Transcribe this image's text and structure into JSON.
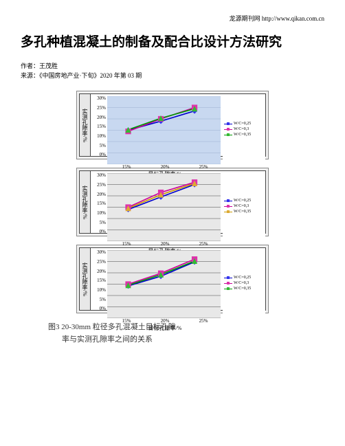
{
  "header_link": "龙源期刊网 http://www.qikan.com.cn",
  "title": "多孔种植混凝土的制备及配合比设计方法研究",
  "author": "作者：王茂胜",
  "source": "来源：《中国房地产业·下旬》2020 年第 03 期",
  "y_label": "实测孔隙率/%",
  "x_label": "目标孔隙率/%",
  "caption_line1": "图3  20-30mm 粒径多孔混凝土目标孔隙",
  "caption_line2": "率与实测孔隙率之间的关系",
  "charts": [
    {
      "y_ticks": [
        "30%",
        "25%",
        "20%",
        "15%",
        "10%",
        "5%",
        "0%"
      ],
      "x_ticks": [
        "15%",
        "20%",
        "25%"
      ],
      "plot_bg": "#c8d8f0",
      "grid_color": "#9bb0d0",
      "series": [
        {
          "label": "W/C=0,25",
          "color": "#0000cc",
          "marker_fill": "#3333ee",
          "marker": "diamond",
          "points": [
            [
              15,
              15
            ],
            [
              47,
              19
            ],
            [
              80,
              23.5
            ]
          ]
        },
        {
          "label": "W/C=0,3",
          "color": "#cc0099",
          "marker_fill": "#dd33aa",
          "marker": "square",
          "points": [
            [
              15,
              14.5
            ],
            [
              47,
              20
            ],
            [
              80,
              25
            ]
          ]
        },
        {
          "label": "W/C=0,35",
          "color": "#009900",
          "marker_fill": "#33bb33",
          "marker": "triangle",
          "points": [
            [
              15,
              15.2
            ],
            [
              47,
              20.3
            ],
            [
              80,
              24.5
            ]
          ]
        }
      ],
      "ylim": [
        0,
        30
      ]
    },
    {
      "y_ticks": [
        "30%",
        "25%",
        "20%",
        "15%",
        "10%",
        "5%",
        "0%"
      ],
      "x_ticks": [
        "15%",
        "20%",
        "25%"
      ],
      "plot_bg": "#e8e8e8",
      "grid_color": "#444444",
      "series": [
        {
          "label": "W/C=0,25",
          "color": "#0000cc",
          "marker_fill": "#3333ee",
          "marker": "diamond",
          "points": [
            [
              15,
              14
            ],
            [
              47,
              19.5
            ],
            [
              80,
              25
            ]
          ]
        },
        {
          "label": "W/C=0,3",
          "color": "#cc0099",
          "marker_fill": "#dd33aa",
          "marker": "square",
          "points": [
            [
              15,
              15
            ],
            [
              47,
              21.5
            ],
            [
              80,
              26
            ]
          ]
        },
        {
          "label": "W/C=0,35",
          "color": "#cc9900",
          "marker_fill": "#ddaa33",
          "marker": "triangle",
          "points": [
            [
              15,
              14.5
            ],
            [
              47,
              20.5
            ],
            [
              80,
              25.5
            ]
          ]
        }
      ],
      "ylim": [
        0,
        30
      ]
    },
    {
      "y_ticks": [
        "30%",
        "25%",
        "20%",
        "15%",
        "10%",
        "5%",
        "0%"
      ],
      "x_ticks": [
        "15%",
        "20%",
        "25%"
      ],
      "plot_bg": "#e8e8e8",
      "grid_color": "#444444",
      "series": [
        {
          "label": "W/C=0,25",
          "color": "#0000cc",
          "marker_fill": "#3333ee",
          "marker": "diamond",
          "points": [
            [
              15,
              14.2
            ],
            [
              47,
              18.5
            ],
            [
              80,
              24.8
            ]
          ]
        },
        {
          "label": "W/C=0,3",
          "color": "#cc0099",
          "marker_fill": "#dd33aa",
          "marker": "square",
          "points": [
            [
              15,
              15
            ],
            [
              47,
              19.8
            ],
            [
              80,
              26
            ]
          ]
        },
        {
          "label": "W/C=0,35",
          "color": "#009900",
          "marker_fill": "#33bb33",
          "marker": "triangle",
          "points": [
            [
              15,
              14.5
            ],
            [
              47,
              19.2
            ],
            [
              80,
              25.2
            ]
          ]
        }
      ],
      "ylim": [
        0,
        30
      ]
    }
  ]
}
